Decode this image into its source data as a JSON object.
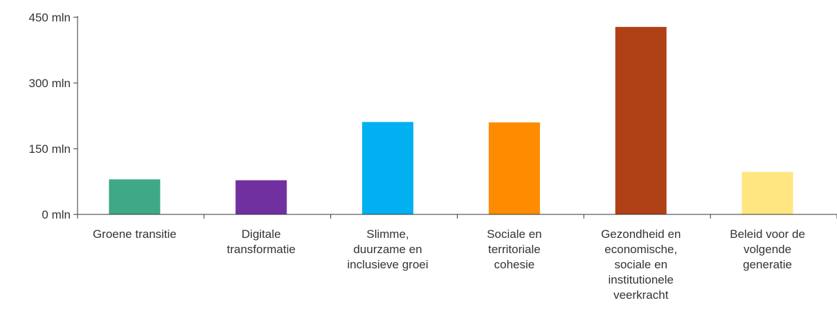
{
  "chart_data": {
    "type": "bar",
    "title": "",
    "xlabel": "",
    "ylabel": "",
    "ylim": [
      0,
      450
    ],
    "yticks": [
      0,
      150,
      300,
      450
    ],
    "ytick_labels": [
      "0 mln",
      "150 mln",
      "300 mln",
      "450 mln"
    ],
    "grid": false,
    "categories": [
      [
        "Groene transitie"
      ],
      [
        "Digitale",
        "transformatie"
      ],
      [
        "Slimme,",
        "duurzame en",
        "inclusieve groei"
      ],
      [
        "Sociale en",
        "territoriale",
        "cohesie"
      ],
      [
        "Gezondheid en",
        "economische,",
        "sociale en",
        "institutionele",
        "veerkracht"
      ],
      [
        "Beleid voor de",
        "volgende",
        "generatie"
      ]
    ],
    "values": [
      80,
      78,
      211,
      210,
      428,
      97
    ],
    "colors": [
      "#3fa886",
      "#7030a0",
      "#00b0f0",
      "#ff8c00",
      "#b04015",
      "#ffe680"
    ]
  }
}
